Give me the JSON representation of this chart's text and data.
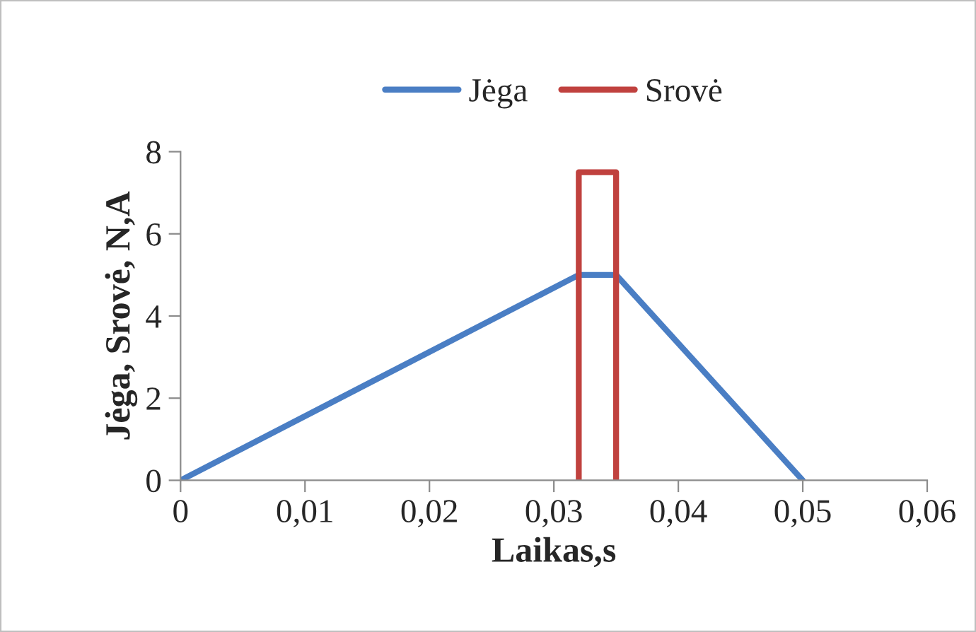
{
  "chart_data": {
    "type": "line",
    "xlabel": "Laikas,s",
    "ylabel": "Jėga, Srovė, N,A",
    "series": [
      {
        "name": "Jėga",
        "color": "#4a7ec4",
        "x": [
          0,
          0.032,
          0.035,
          0.05
        ],
        "values": [
          0,
          5,
          5,
          0
        ]
      },
      {
        "name": "Srovė",
        "color": "#c0413e",
        "x": [
          0.032,
          0.032,
          0.035,
          0.035
        ],
        "values": [
          0,
          7.5,
          7.5,
          0
        ]
      }
    ],
    "xlim": [
      0,
      0.06
    ],
    "xticks": [
      0,
      {
        "value": 0.01,
        "label": "0,01"
      },
      {
        "value": 0.02,
        "label": "0,02"
      },
      {
        "value": 0.03,
        "label": "0,03"
      },
      {
        "value": 0.04,
        "label": "0,04"
      },
      {
        "value": 0.05,
        "label": "0,05"
      },
      {
        "value": 0.06,
        "label": "0,06"
      }
    ],
    "ylim": [
      0,
      8
    ],
    "yticks": [
      0,
      2,
      4,
      6,
      8
    ],
    "grid": false,
    "legend": "top",
    "marker": "none",
    "line_style": "solid"
  }
}
